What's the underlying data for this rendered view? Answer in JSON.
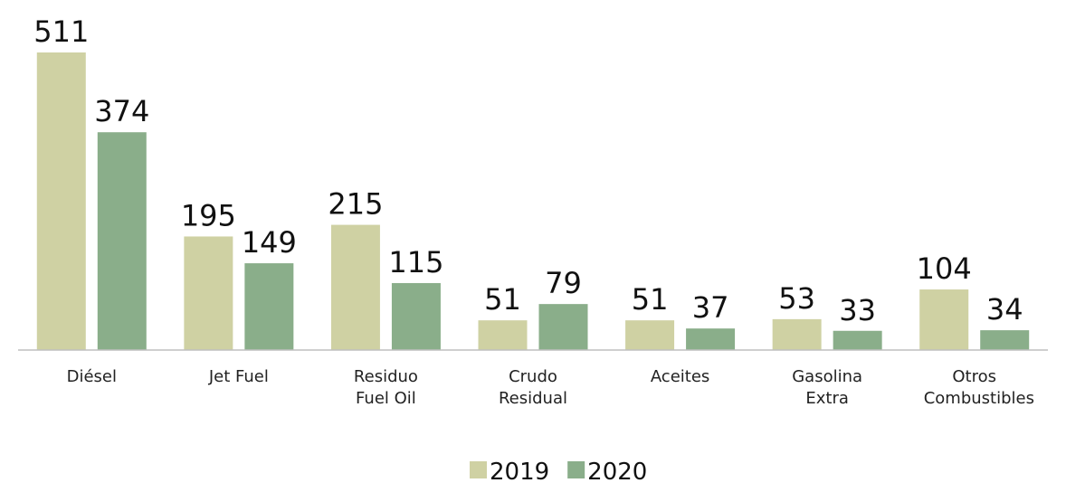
{
  "chart_data": {
    "type": "bar",
    "categories": [
      "Diésel",
      "Jet Fuel",
      "Residuo Fuel Oil",
      "Crudo Residual",
      "Aceites",
      "Gasolina Extra",
      "Otros Combustibles"
    ],
    "series": [
      {
        "name": "2019",
        "color": "#cfd1a3",
        "values": [
          511,
          195,
          215,
          51,
          51,
          53,
          104
        ]
      },
      {
        "name": "2020",
        "color": "#8aae8a",
        "values": [
          374,
          149,
          115,
          79,
          37,
          33,
          34
        ]
      }
    ],
    "legend": "bottom"
  }
}
